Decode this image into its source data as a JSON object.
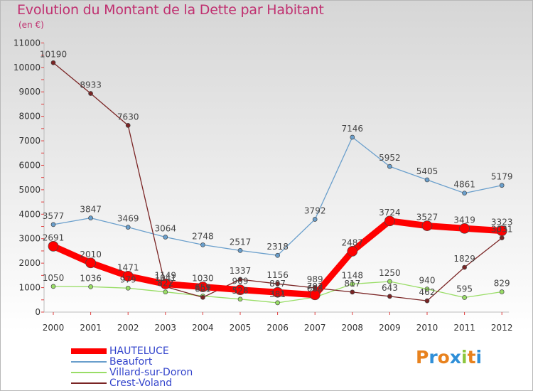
{
  "title": "Evolution du Montant de la Dette par Habitant",
  "unit": "(en €)",
  "logo": {
    "text": "Proxiti",
    "colors": [
      "#e8821e",
      "#2f8fd8",
      "#e8821e",
      "#2f8fd8",
      "#8cc63e",
      "#e8821e",
      "#2f8fd8"
    ]
  },
  "chart_data": {
    "type": "line",
    "title": "Evolution du Montant de la Dette par Habitant",
    "ylabel": "(en €)",
    "x": [
      "2000",
      "2001",
      "2002",
      "2003",
      "2004",
      "2005",
      "2006",
      "2007",
      "2008",
      "2009",
      "2010",
      "2011",
      "2012"
    ],
    "ylim": [
      0,
      11000
    ],
    "yticks": [
      0,
      1000,
      2000,
      3000,
      4000,
      5000,
      6000,
      7000,
      8000,
      9000,
      10000,
      11000
    ],
    "grid": false,
    "legend_position": "bottom-left",
    "series": [
      {
        "name": "HAUTELUCE",
        "color": "#ff0000",
        "values": [
          2691,
          2010,
          1471,
          1149,
          1030,
          909,
          807,
          702,
          2487,
          3724,
          3527,
          3419,
          3323
        ]
      },
      {
        "name": "Beaufort",
        "color": "#6a9fcc",
        "values": [
          3577,
          3847,
          3469,
          3064,
          2748,
          2517,
          2318,
          3792,
          7146,
          5952,
          5405,
          4861,
          5179
        ]
      },
      {
        "name": "Villard-sur-Doron",
        "color": "#99dd66",
        "values": [
          1050,
          1036,
          979,
          822,
          659,
          528,
          381,
          608,
          1148,
          1250,
          940,
          595,
          829
        ]
      },
      {
        "name": "Crest-Voland",
        "color": "#7a2424",
        "values": [
          10190,
          8933,
          7630,
          1041,
          601,
          1337,
          1156,
          989,
          817,
          643,
          462,
          1829,
          3031
        ]
      }
    ]
  }
}
